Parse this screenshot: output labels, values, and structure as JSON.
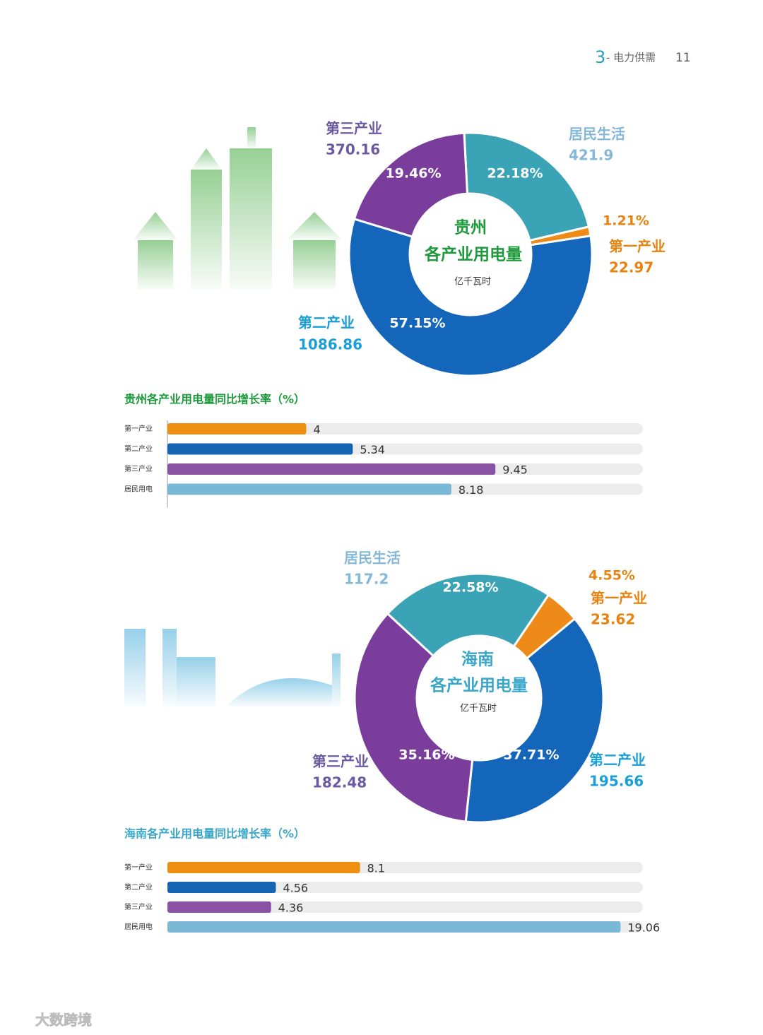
{
  "header": {
    "section_number": "3",
    "section": "- 电力供需",
    "page": "11"
  },
  "chart_data": [
    {
      "type": "pie",
      "title": "贵州",
      "subtitle": "各产业用电量",
      "unit": "亿千瓦时",
      "title_color": "#1e9a3c",
      "categories": [
        "居民生活",
        "第一产业",
        "第二产业",
        "第三产业"
      ],
      "values": [
        421.9,
        22.97,
        1086.86,
        370.16
      ],
      "percent_labels": [
        "22.18%",
        "1.21%",
        "57.15%",
        "19.46%"
      ],
      "colors": [
        "#3aa3b5",
        "#ee8a18",
        "#1466bb",
        "#7a3d9c"
      ],
      "label_colors": [
        "#84b8d6",
        "#e8830f",
        "#1a9fd8",
        "#6a5aa6"
      ]
    },
    {
      "type": "bar",
      "title": "贵州各产业用电量同比增长率（%）",
      "title_color": "#1e9a3c",
      "categories": [
        "第一产业",
        "第二产业",
        "第三产业",
        "居民用电"
      ],
      "values": [
        4,
        5.34,
        9.45,
        8.18
      ],
      "colors": [
        "#ee8f12",
        "#1565b5",
        "#8a52a3",
        "#7ab8d8"
      ],
      "xlim": [
        0,
        13.7
      ]
    },
    {
      "type": "pie",
      "title": "海南",
      "subtitle": "各产业用电量",
      "unit": "亿千瓦时",
      "title_color": "#3aa6c8",
      "categories": [
        "第一产业",
        "第二产业",
        "第三产业",
        "居民生活"
      ],
      "values": [
        23.62,
        195.66,
        182.48,
        117.2
      ],
      "percent_labels": [
        "4.55%",
        "37.71%",
        "35.16%",
        "22.58%"
      ],
      "colors": [
        "#ee8a18",
        "#1466bb",
        "#7a3d9c",
        "#3aa3b5"
      ],
      "label_colors": [
        "#e8830f",
        "#1a9fd8",
        "#6a5aa6",
        "#84b8d6"
      ]
    },
    {
      "type": "bar",
      "title": "海南各产业用电量同比增长率（%）",
      "title_color": "#3aa6c8",
      "categories": [
        "第一产业",
        "第二产业",
        "第三产业",
        "居民用电"
      ],
      "values": [
        8.1,
        4.56,
        4.36,
        19.06
      ],
      "colors": [
        "#ee8f12",
        "#1565b5",
        "#8a52a3",
        "#7ab8d8"
      ],
      "xlim": [
        0,
        20
      ]
    }
  ],
  "watermark": "大数跨境"
}
